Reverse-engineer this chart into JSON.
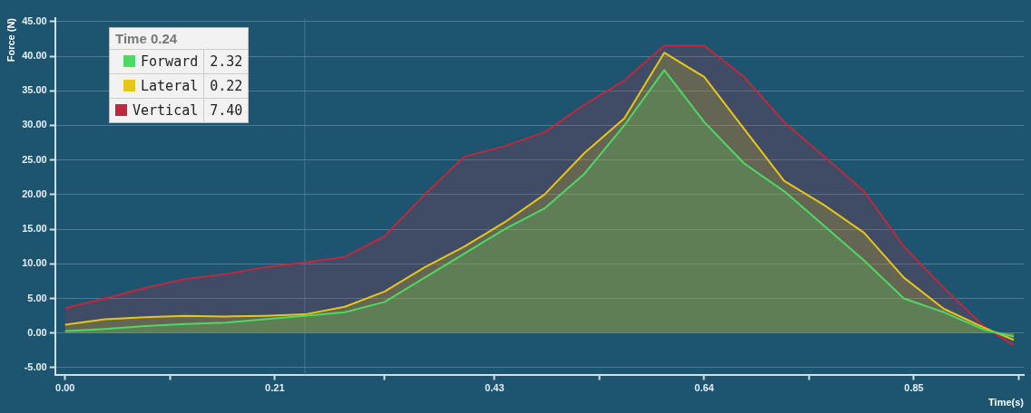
{
  "chart_data": {
    "type": "area",
    "xlabel": "Time(s)",
    "ylabel": "Force (N)",
    "x": [
      0,
      0.04,
      0.08,
      0.12,
      0.16,
      0.2,
      0.24,
      0.28,
      0.32,
      0.36,
      0.4,
      0.44,
      0.48,
      0.52,
      0.56,
      0.6,
      0.64,
      0.68,
      0.72,
      0.76,
      0.8,
      0.84,
      0.88,
      0.92,
      0.95
    ],
    "series": [
      {
        "name": "Forward",
        "color": "#4cd964",
        "values": [
          0.3,
          0.6,
          1.0,
          1.3,
          1.5,
          2.0,
          2.5,
          3.0,
          4.5,
          8,
          11.5,
          15,
          18,
          23,
          30,
          38,
          30.5,
          24.5,
          20.5,
          15.5,
          10.5,
          5,
          3,
          0.5,
          -0.5
        ]
      },
      {
        "name": "Lateral",
        "color": "#e6c619",
        "values": [
          1.2,
          2.0,
          2.3,
          2.5,
          2.4,
          2.5,
          2.7,
          3.8,
          6,
          9.5,
          12.5,
          16,
          20,
          26,
          31,
          40.5,
          37,
          29.5,
          22,
          18.5,
          14.5,
          8,
          3.5,
          0.8,
          -1.0
        ]
      },
      {
        "name": "Vertical",
        "color": "#c0283f",
        "values": [
          3.6,
          5.0,
          6.5,
          7.8,
          8.5,
          9.5,
          10.2,
          11,
          14,
          20,
          25.5,
          27,
          29,
          33,
          36.5,
          41.5,
          41.5,
          37,
          30.5,
          25.5,
          20.5,
          12.5,
          6.5,
          1.0,
          -1.8
        ]
      }
    ],
    "xlim": [
      -0.01,
      0.96
    ],
    "xticks": [
      {
        "value": 0,
        "label": "0.00"
      },
      {
        "value": 0.105,
        "label": null
      },
      0.21,
      {
        "value": 0.32,
        "label": null
      },
      0.43,
      {
        "value": 0.535,
        "label": null
      },
      0.64,
      {
        "value": 0.745,
        "label": null
      },
      0.85,
      {
        "value": 0.955,
        "label": null
      }
    ],
    "ylim": [
      -6,
      45.5
    ],
    "yticks": [
      {
        "value": -5,
        "label": "-5.00"
      },
      {
        "value": 0,
        "label": "0.00"
      },
      {
        "value": 5,
        "label": "5.00"
      },
      {
        "value": 10,
        "label": "10.00"
      },
      {
        "value": 15,
        "label": "15.00"
      },
      {
        "value": 20,
        "label": "20.00"
      },
      {
        "value": 25,
        "label": "25.00"
      },
      {
        "value": 30,
        "label": "30.00"
      },
      {
        "value": 35,
        "label": "35.00"
      },
      {
        "value": 40,
        "label": "40.00"
      },
      {
        "value": 45,
        "label": "45.00"
      }
    ],
    "grid": "y",
    "legend": "left",
    "marker": "none",
    "ref_lines": [
      {
        "axis": "x",
        "value": 0.24,
        "color": "#3d7a8c"
      }
    ],
    "annotations": [
      "Time 0.24",
      "2.32",
      "0.22",
      "7.40"
    ]
  }
}
